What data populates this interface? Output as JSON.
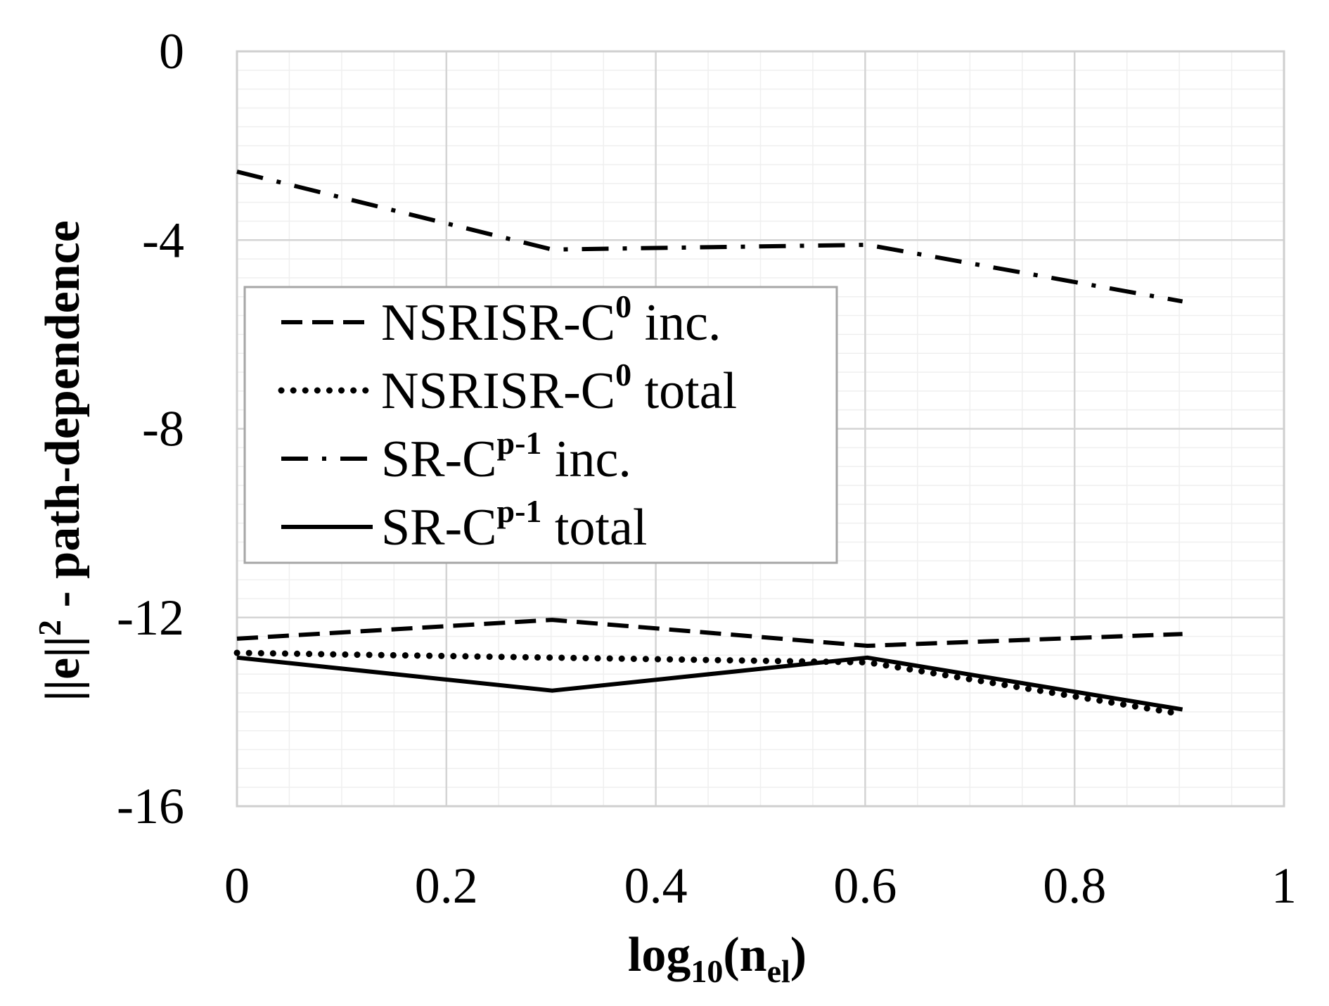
{
  "chart_data": {
    "type": "line",
    "title": "",
    "xlabel": {
      "base": "log",
      "sub1": "10",
      "mid": "(n",
      "sub2": "el",
      "end": ")"
    },
    "ylabel": {
      "pre": "||e||",
      "sup": "2",
      "post": " - path-dependence"
    },
    "xlim": [
      0,
      1
    ],
    "ylim": [
      -16,
      0
    ],
    "xticks": [
      0,
      0.2,
      0.4,
      0.6,
      0.8,
      1
    ],
    "xtick_labels": [
      "0",
      "0.2",
      "0.4",
      "0.6",
      "0.8",
      "1"
    ],
    "yticks": [
      0,
      -4,
      -8,
      -12,
      -16
    ],
    "ytick_labels": [
      "0",
      "-4",
      "-8",
      "-12",
      "-16"
    ],
    "grid": true,
    "legend_position": "left-middle",
    "x": [
      0,
      0.301,
      0.602,
      0.903
    ],
    "series": [
      {
        "name": "NSRISR-C0 inc.",
        "label": {
          "main": "NSRISR-C",
          "sup": "0",
          "rest": " inc."
        },
        "style": "dashed",
        "values": [
          -12.45,
          -12.05,
          -12.6,
          -12.35
        ]
      },
      {
        "name": "NSRISR-C0 total",
        "label": {
          "main": "NSRISR-C",
          "sup": "0",
          "rest": " total"
        },
        "style": "dotted",
        "values": [
          -12.75,
          -12.85,
          -12.95,
          -14.05
        ]
      },
      {
        "name": "SR-Cp-1 inc.",
        "label": {
          "main": "SR-C",
          "sup": "p-1",
          "rest": " inc."
        },
        "style": "dashdot",
        "values": [
          -2.55,
          -4.2,
          -4.1,
          -5.3
        ]
      },
      {
        "name": "SR-Cp-1 total",
        "label": {
          "main": "SR-C",
          "sup": "p-1",
          "rest": " total"
        },
        "style": "solid",
        "values": [
          -12.85,
          -13.55,
          -12.85,
          -13.95
        ]
      }
    ]
  }
}
